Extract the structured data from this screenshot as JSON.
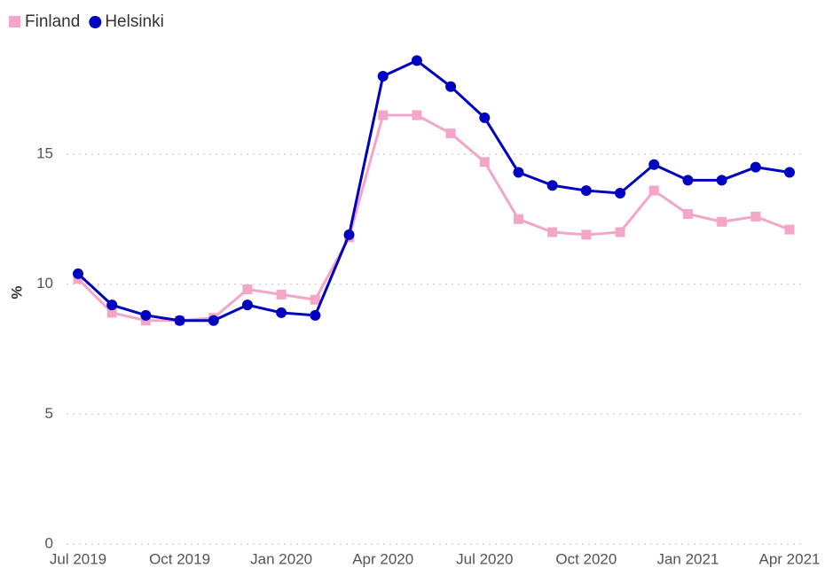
{
  "chart_data": {
    "type": "line",
    "y_label": "%",
    "categories": [
      "Jul 2019",
      null,
      null,
      "Oct 2019",
      null,
      null,
      "Jan 2020",
      null,
      null,
      "Apr 2020",
      null,
      null,
      "Jul 2020",
      null,
      null,
      "Oct 2020",
      null,
      null,
      "Jan 2021",
      null,
      null,
      "Apr 2021"
    ],
    "series": [
      {
        "name": "Finland",
        "color": "#f4a6c8",
        "marker": "square",
        "values": [
          10.2,
          8.9,
          8.6,
          8.6,
          8.7,
          9.8,
          9.6,
          9.4,
          11.8,
          16.5,
          16.5,
          15.8,
          14.7,
          12.5,
          12.0,
          11.9,
          12.0,
          13.6,
          12.7,
          12.4,
          12.6,
          12.1
        ]
      },
      {
        "name": "Helsinki",
        "color": "#0000c0",
        "marker": "circle",
        "values": [
          10.4,
          9.2,
          8.8,
          8.6,
          8.6,
          9.2,
          8.9,
          8.8,
          11.9,
          18.0,
          18.6,
          17.6,
          16.4,
          14.3,
          13.8,
          13.6,
          13.5,
          14.6,
          14.0,
          14.0,
          14.5,
          14.3
        ]
      }
    ],
    "ylim": [
      0,
      19.5
    ],
    "yticks": [
      0,
      5,
      10,
      15
    ],
    "grid": true,
    "legend": "top-left"
  }
}
